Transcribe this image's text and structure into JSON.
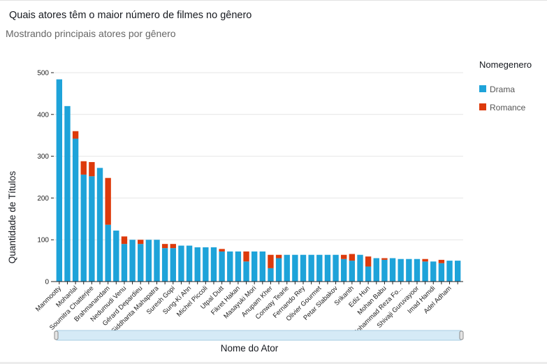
{
  "header": {
    "title": "Quais atores têm o maior número de filmes no gênero",
    "subtitle": "Mostrando principais atores por gênero"
  },
  "legend": {
    "title": "Nomegenero",
    "items": [
      {
        "label": "Drama",
        "color": "#1ea3d9"
      },
      {
        "label": "Romance",
        "color": "#dd3a0b"
      }
    ]
  },
  "chart_data": {
    "type": "bar",
    "stacked": true,
    "xlabel": "Nome do Ator",
    "ylabel": "Quantidade de Títulos",
    "ylim": [
      0,
      500
    ],
    "yticks": [
      0,
      100,
      200,
      300,
      400,
      500
    ],
    "grid": true,
    "legend_position": "right",
    "categories": [
      "Manmootty",
      "",
      "Mohanlal",
      "",
      "Soumitra Chatterjee",
      "",
      "Brahmanandam",
      "",
      "Nedumudi Venu",
      "",
      "Gérard Depardieu",
      "",
      "Siddhanta Mahapatra",
      "",
      "Suresh Gopi",
      "",
      "Sung-Ki Ahn",
      "",
      "Michel Piccoli",
      "",
      "Utpal Dutt",
      "",
      "Fikret Hakan",
      "",
      "Masayuki Mori",
      "",
      "Anupam Kher",
      "",
      "Conway Tearle",
      "",
      "Fernando Rey",
      "",
      "Olivier Gourmet",
      "",
      "Petar Slabakov",
      "",
      "Srikanth",
      "",
      "Ediz Hun",
      "",
      "Mohan Babu",
      "",
      "Mohammad Reza Fo...",
      "",
      "Shivaji Guruvayoor",
      "",
      "Imad Hamdi",
      "",
      "Adel Adham",
      ""
    ],
    "series": [
      {
        "name": "Drama",
        "color": "#1ea3d9",
        "values": [
          484,
          420,
          342,
          256,
          252,
          272,
          136,
          122,
          90,
          100,
          90,
          100,
          100,
          80,
          80,
          86,
          86,
          82,
          82,
          82,
          72,
          72,
          72,
          48,
          72,
          72,
          32,
          56,
          64,
          64,
          64,
          64,
          64,
          64,
          64,
          54,
          50,
          64,
          36,
          56,
          52,
          56,
          54,
          54,
          54,
          48,
          48,
          44,
          50,
          50
        ]
      },
      {
        "name": "Romance",
        "color": "#dd3a0b",
        "values": [
          0,
          0,
          18,
          32,
          34,
          0,
          112,
          0,
          18,
          0,
          10,
          0,
          0,
          10,
          10,
          0,
          0,
          0,
          0,
          0,
          6,
          0,
          0,
          24,
          0,
          0,
          32,
          8,
          0,
          0,
          0,
          0,
          0,
          0,
          0,
          10,
          16,
          0,
          24,
          0,
          4,
          0,
          0,
          0,
          0,
          6,
          0,
          8,
          0,
          0
        ]
      }
    ]
  }
}
